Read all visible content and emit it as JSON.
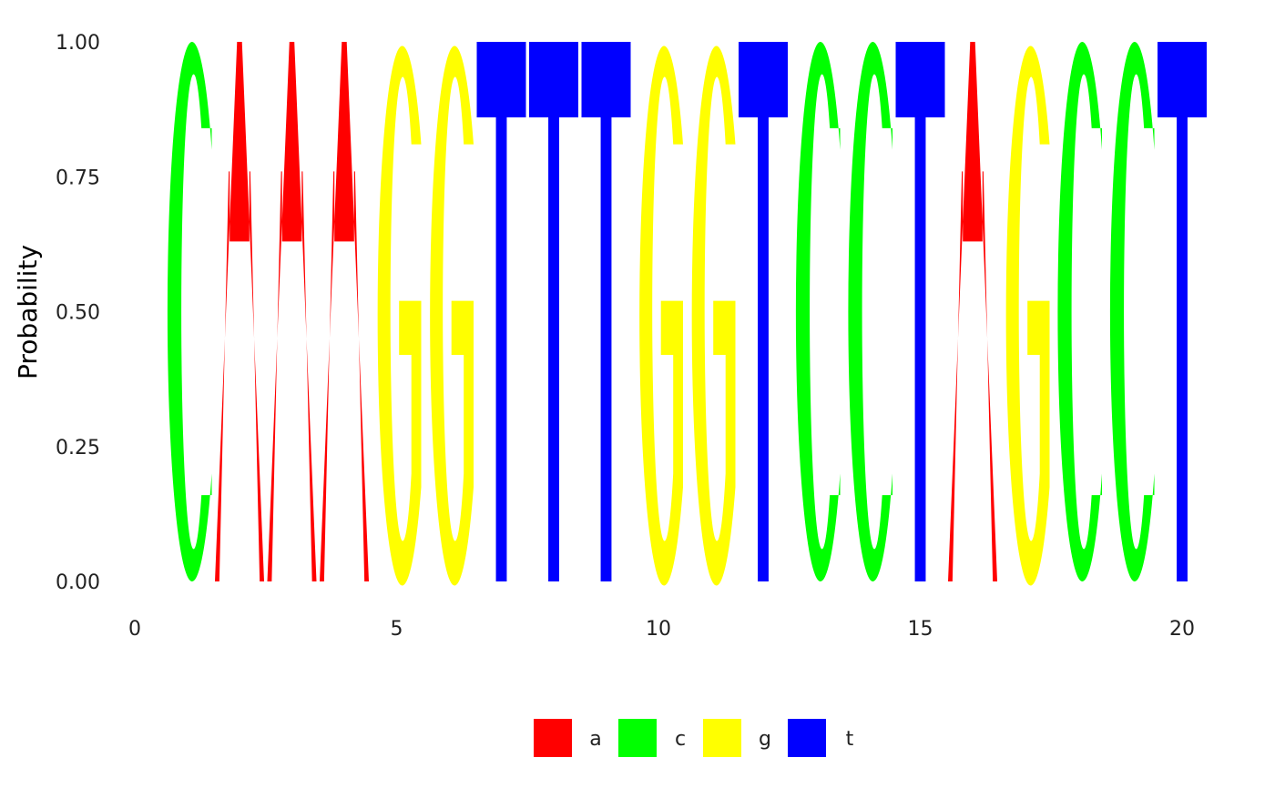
{
  "chart_data": {
    "type": "sequence-logo",
    "ylabel": "Probability",
    "xlabel": "",
    "xlim": [
      0,
      20.5
    ],
    "ylim": [
      0,
      1
    ],
    "x_ticks": [
      0,
      5,
      10,
      15,
      20
    ],
    "x_tick_labels": [
      "0",
      "5",
      "10",
      "15",
      "20"
    ],
    "y_ticks": [
      0,
      0.25,
      0.5,
      0.75,
      1
    ],
    "y_tick_labels": [
      "0.00",
      "0.25",
      "0.50",
      "0.75",
      "1.00"
    ],
    "grid": false,
    "legend_position": "bottom",
    "letter_colors": {
      "a": "#ff0000",
      "c": "#00ff00",
      "g": "#ffff00",
      "t": "#0000ff"
    },
    "legend": [
      {
        "letter": "a",
        "color": "#ff0000"
      },
      {
        "letter": "c",
        "color": "#00ff00"
      },
      {
        "letter": "g",
        "color": "#ffff00"
      },
      {
        "letter": "t",
        "color": "#0000ff"
      }
    ],
    "positions": [
      1,
      2,
      3,
      4,
      5,
      6,
      7,
      8,
      9,
      10,
      11,
      12,
      13,
      14,
      15,
      16,
      17,
      18,
      19,
      20
    ],
    "sequence": [
      "c",
      "a",
      "a",
      "a",
      "g",
      "g",
      "t",
      "t",
      "t",
      "g",
      "g",
      "t",
      "c",
      "c",
      "t",
      "a",
      "g",
      "c",
      "c",
      "t"
    ],
    "series": [
      {
        "name": "a",
        "values": [
          0,
          1,
          1,
          1,
          0,
          0,
          0,
          0,
          0,
          0,
          0,
          0,
          0,
          0,
          0,
          1,
          0,
          0,
          0,
          0
        ]
      },
      {
        "name": "c",
        "values": [
          1,
          0,
          0,
          0,
          0,
          0,
          0,
          0,
          0,
          0,
          0,
          0,
          1,
          1,
          0,
          0,
          0,
          1,
          1,
          0
        ]
      },
      {
        "name": "g",
        "values": [
          0,
          0,
          0,
          0,
          1,
          1,
          0,
          0,
          0,
          1,
          1,
          0,
          0,
          0,
          0,
          0,
          1,
          0,
          0,
          0
        ]
      },
      {
        "name": "t",
        "values": [
          0,
          0,
          0,
          0,
          0,
          0,
          1,
          1,
          1,
          0,
          0,
          1,
          0,
          0,
          1,
          0,
          0,
          0,
          0,
          1
        ]
      }
    ]
  }
}
